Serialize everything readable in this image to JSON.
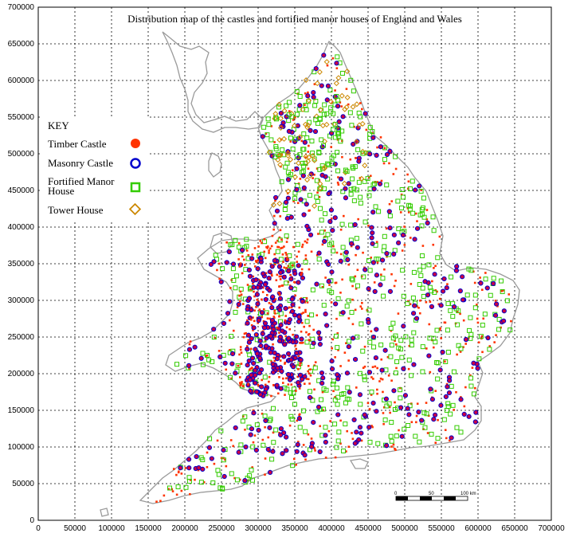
{
  "map": {
    "title": "Distribution map of the castles and fortified manor houses of England and Wales",
    "x_ticks": [
      "0",
      "50000",
      "100000",
      "150000",
      "200000",
      "250000",
      "300000",
      "350000",
      "400000",
      "450000",
      "500000",
      "550000",
      "600000",
      "650000",
      "700000"
    ],
    "y_ticks": [
      "0",
      "50000",
      "100000",
      "150000",
      "200000",
      "250000",
      "300000",
      "350000",
      "400000",
      "450000",
      "500000",
      "550000",
      "600000",
      "650000",
      "700000"
    ],
    "scale_bar": {
      "labels": [
        "0",
        "50",
        "100 km"
      ]
    }
  },
  "key": {
    "heading": "KEY",
    "items": [
      {
        "id": "timber",
        "label": "Timber Castle",
        "color": "#ff3300",
        "symbol": "filled-circle-icon"
      },
      {
        "id": "masonry",
        "label": "Masonry Castle",
        "color": "#0000cc",
        "symbol": "ring-icon"
      },
      {
        "id": "manor",
        "label": "Fortified Manor House",
        "label_line1": "Fortified Manor",
        "label_line2": "House",
        "color": "#33cc00",
        "symbol": "square-icon"
      },
      {
        "id": "tower",
        "label": "Tower House",
        "color": "#cc8800",
        "symbol": "diamond-icon"
      }
    ]
  },
  "colors": {
    "timber_dot": "#ff3300",
    "masonry_ring": "#0000cc",
    "masonry_fill": "#cc0044",
    "manor_square": "#33cc00",
    "tower_diamond": "#cc8800",
    "coastline": "#9a9a9a",
    "grid": "#000000"
  }
}
